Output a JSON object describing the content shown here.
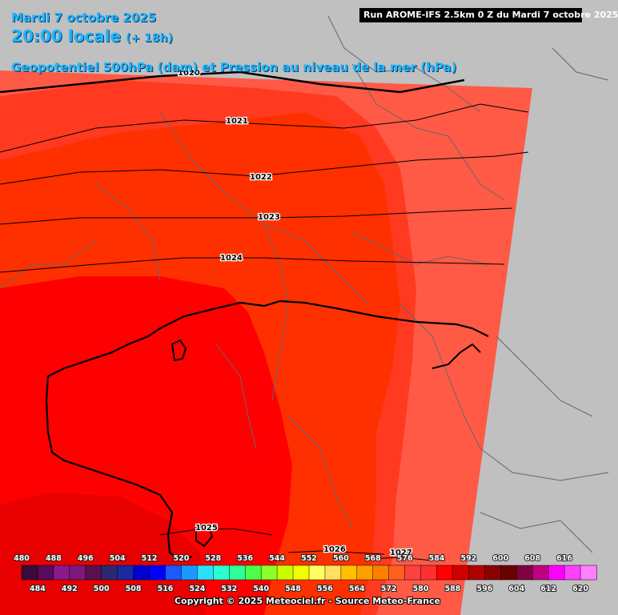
{
  "header": {
    "date": "Mardi 7 octobre 2025",
    "time": "20:00 locale",
    "lead": "(+ 18h)",
    "field": "Geopotentiel 500hPa (dam) et Pression au niveau de la mer (hPa)",
    "run": "Run AROME-IFS 2.5km 0 Z du Mardi 7 octobre 2025"
  },
  "isobars": [
    {
      "label": "1020"
    },
    {
      "label": "1021"
    },
    {
      "label": "1022"
    },
    {
      "label": "1023"
    },
    {
      "label": "1024"
    },
    {
      "label": "1025"
    },
    {
      "label": "1026"
    },
    {
      "label": "1027"
    }
  ],
  "colors": {
    "background": "#c0c0c0",
    "geo_588": "#ff0000",
    "geo_584": "#ff2a00",
    "geo_580": "#ff4436",
    "geo_576": "#ff5a46",
    "geo_592": "#e80000",
    "coast": "#000000",
    "borders": "#555555"
  },
  "legend": {
    "top_labels": [
      "480",
      "488",
      "496",
      "504",
      "512",
      "520",
      "528",
      "536",
      "544",
      "552",
      "560",
      "568",
      "576",
      "584",
      "592",
      "600",
      "608",
      "616"
    ],
    "bottom_labels": [
      "484",
      "492",
      "500",
      "508",
      "516",
      "524",
      "532",
      "540",
      "548",
      "556",
      "564",
      "572",
      "580",
      "588",
      "596",
      "604",
      "612",
      "620"
    ],
    "colors": [
      "#3a0a3a",
      "#5a0a5a",
      "#8a1a8a",
      "#7a1a7a",
      "#5a1050",
      "#2a2a70",
      "#1a2aa0",
      "#0000d0",
      "#0000ff",
      "#1a5aff",
      "#1a9aff",
      "#2ae0ff",
      "#2affd0",
      "#2aff9a",
      "#4aff4a",
      "#8aff2a",
      "#c8ff00",
      "#f0ff00",
      "#ffff60",
      "#ffe060",
      "#ffc000",
      "#ffa000",
      "#ff8000",
      "#ff6020",
      "#ff4040",
      "#ff3030",
      "#ff0000",
      "#d00000",
      "#b00000",
      "#8a0000",
      "#6a0000",
      "#800040",
      "#c00080",
      "#ff00ff",
      "#ff40ff",
      "#ff80ff"
    ]
  },
  "footer": {
    "copyright": "Copyright © 2025 Meteociel.fr - Source Meteo-France"
  }
}
